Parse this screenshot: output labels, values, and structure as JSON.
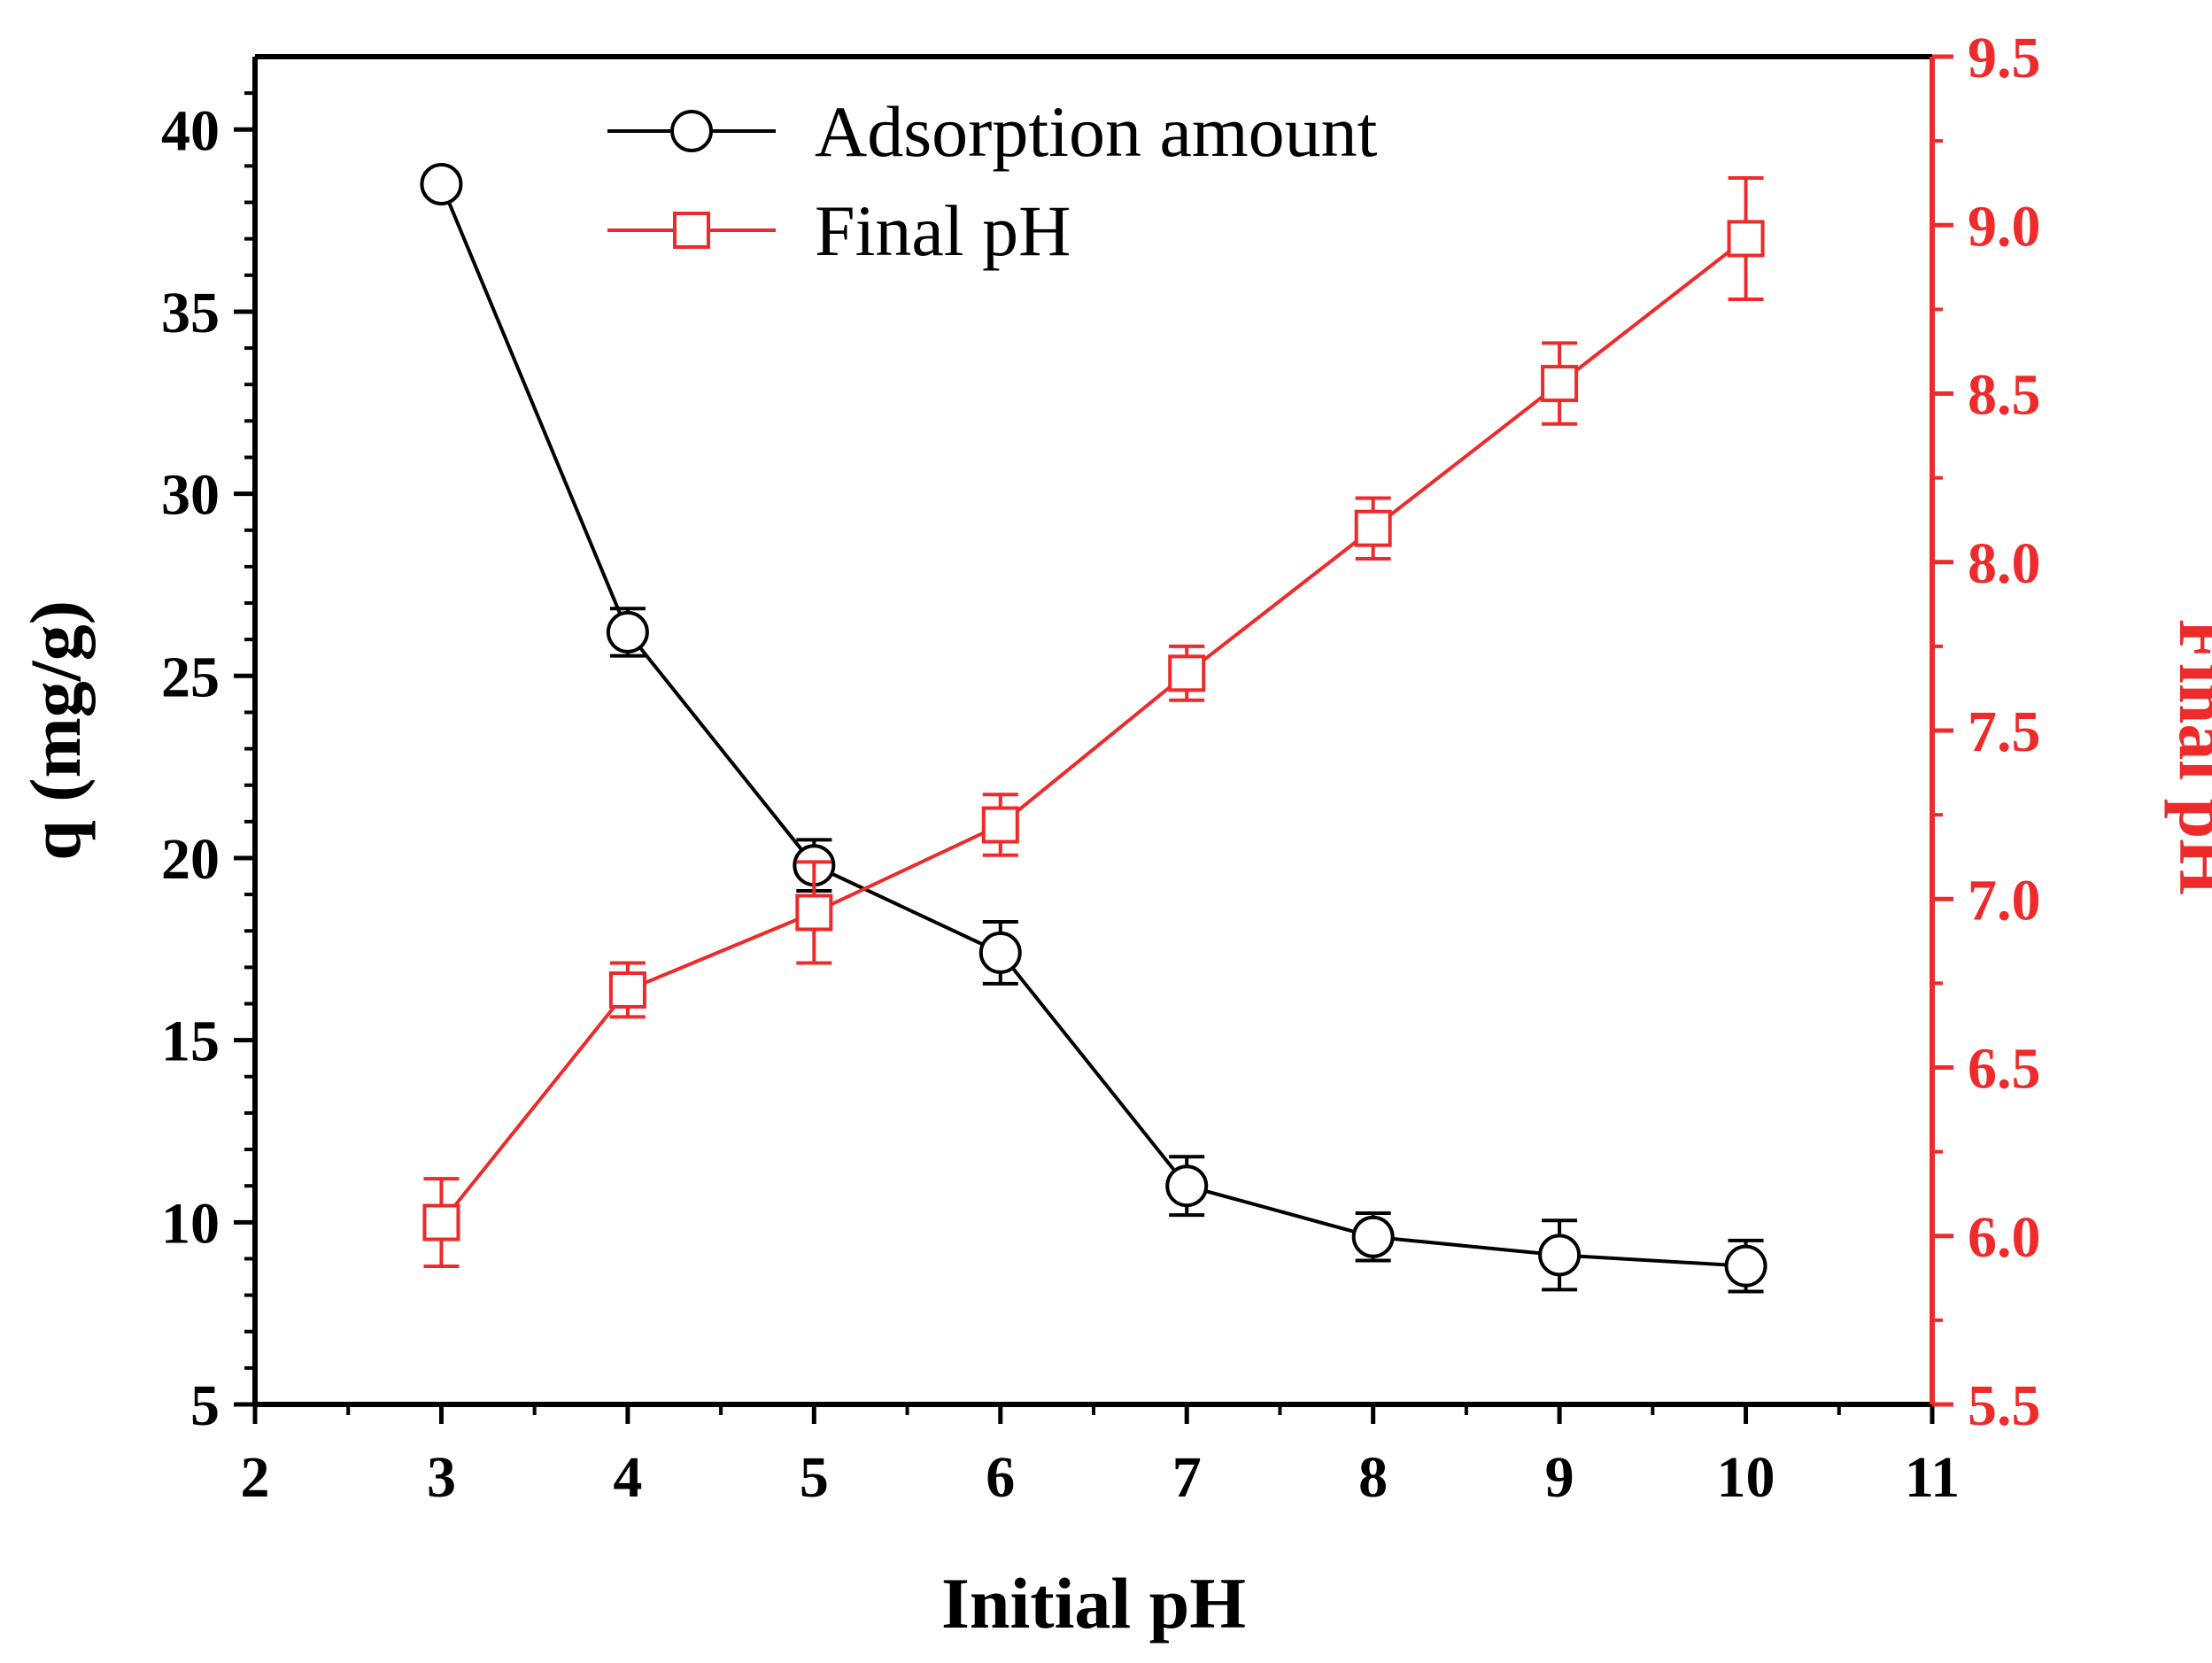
{
  "chart_data": {
    "type": "line",
    "title": "",
    "xlabel": "Initial pH",
    "ylabel": "q (mg/g)",
    "y2label": "Final pH",
    "xlim": [
      2,
      11
    ],
    "ylim": [
      5,
      42
    ],
    "y2lim": [
      5.5,
      9.5
    ],
    "x_ticks": [
      "2",
      "3",
      "4",
      "5",
      "6",
      "7",
      "8",
      "9",
      "10",
      "11"
    ],
    "y_ticks": [
      "5",
      "10",
      "15",
      "20",
      "25",
      "30",
      "35",
      "40"
    ],
    "y2_ticks": [
      "5.5",
      "6.0",
      "6.5",
      "7.0",
      "7.5",
      "8.0",
      "8.5",
      "9.0",
      "9.5"
    ],
    "x": [
      3,
      4,
      5,
      6,
      7,
      8,
      9,
      10
    ],
    "legend_position": "top-center",
    "series": [
      {
        "name": "Adsorption amount",
        "axis": "left",
        "marker": "circle",
        "color": "#000000",
        "values": [
          38.5,
          26.2,
          19.8,
          17.4,
          11.0,
          9.6,
          9.1,
          8.8
        ],
        "errors": [
          0.3,
          0.65,
          0.7,
          0.85,
          0.8,
          0.65,
          0.95,
          0.7
        ]
      },
      {
        "name": "Final pH",
        "axis": "right",
        "marker": "square",
        "color": "#ee2a2a",
        "values": [
          6.04,
          6.73,
          6.96,
          7.22,
          7.67,
          8.1,
          8.53,
          8.96
        ],
        "errors": [
          0.13,
          0.08,
          0.15,
          0.09,
          0.08,
          0.09,
          0.12,
          0.18
        ]
      }
    ]
  }
}
